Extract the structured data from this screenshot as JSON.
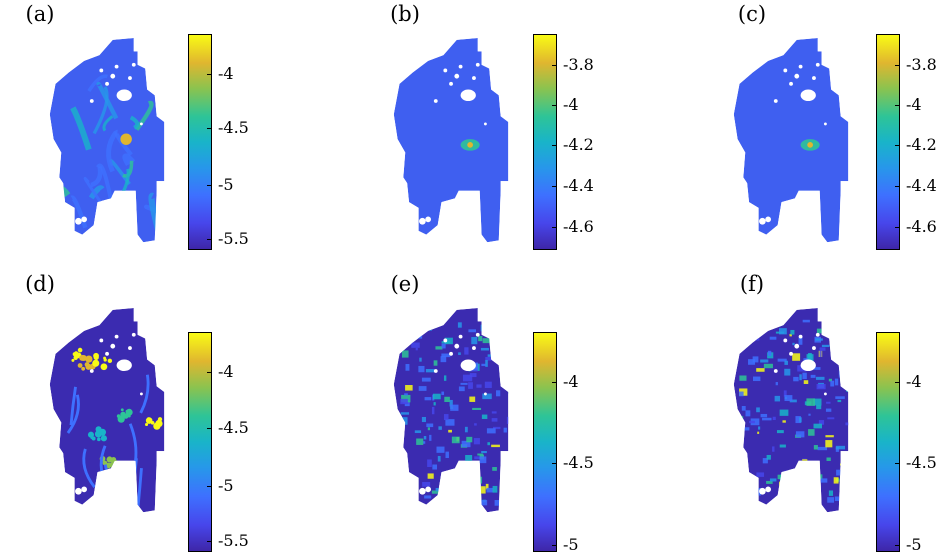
{
  "panels": [
    {
      "label": "(a)",
      "ticks": [
        "-4",
        "-4.5",
        "-5",
        "-5.5"
      ],
      "tick_pos": [
        0.185,
        0.44,
        0.705,
        0.96
      ],
      "colormap": "parula",
      "pattern": "sparse"
    },
    {
      "label": "(b)",
      "ticks": [
        "-3.8",
        "-4",
        "-4.2",
        "-4.4",
        "-4.6"
      ],
      "tick_pos": [
        0.145,
        0.33,
        0.52,
        0.71,
        0.9
      ],
      "colormap": "parula",
      "pattern": "smooth"
    },
    {
      "label": "(c)",
      "ticks": [
        "-3.8",
        "-4",
        "-4.2",
        "-4.4",
        "-4.6"
      ],
      "tick_pos": [
        0.145,
        0.33,
        0.52,
        0.71,
        0.9
      ],
      "colormap": "parula",
      "pattern": "smooth"
    },
    {
      "label": "(d)",
      "ticks": [
        "-4",
        "-4.5",
        "-5",
        "-5.5"
      ],
      "tick_pos": [
        0.185,
        0.44,
        0.705,
        0.96
      ],
      "colormap": "parula",
      "pattern": "hotspots"
    },
    {
      "label": "(e)",
      "ticks": [
        "-4",
        "-4.5",
        "-5"
      ],
      "tick_pos": [
        0.23,
        0.6,
        0.975
      ],
      "colormap": "parula",
      "pattern": "noisy"
    },
    {
      "label": "(f)",
      "ticks": [
        "-4",
        "-4.5",
        "-5"
      ],
      "tick_pos": [
        0.23,
        0.6,
        0.975
      ],
      "colormap": "parula",
      "pattern": "noisy"
    }
  ]
}
